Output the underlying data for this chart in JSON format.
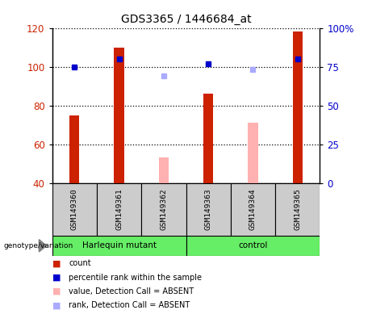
{
  "title": "GDS3365 / 1446684_at",
  "samples": [
    "GSM149360",
    "GSM149361",
    "GSM149362",
    "GSM149363",
    "GSM149364",
    "GSM149365"
  ],
  "ylim_left": [
    40,
    120
  ],
  "ylim_right": [
    0,
    100
  ],
  "yticks_left": [
    40,
    60,
    80,
    100,
    120
  ],
  "yticks_right": [
    0,
    25,
    50,
    75,
    100
  ],
  "count_values": [
    75,
    110,
    null,
    86,
    null,
    118
  ],
  "rank_values": [
    75,
    80,
    null,
    77,
    null,
    80
  ],
  "absent_value_values": [
    null,
    null,
    53,
    null,
    71,
    null
  ],
  "absent_rank_values": [
    null,
    null,
    69,
    null,
    73,
    null
  ],
  "count_color": "#cc2200",
  "rank_color": "#0000cc",
  "absent_value_color": "#ffb0b0",
  "absent_rank_color": "#aaaaff",
  "background_sample": "#cccccc",
  "title_fontsize": 10,
  "harlequin_group": [
    0,
    1,
    2
  ],
  "control_group": [
    3,
    4,
    5
  ],
  "group_color": "#66ee66"
}
